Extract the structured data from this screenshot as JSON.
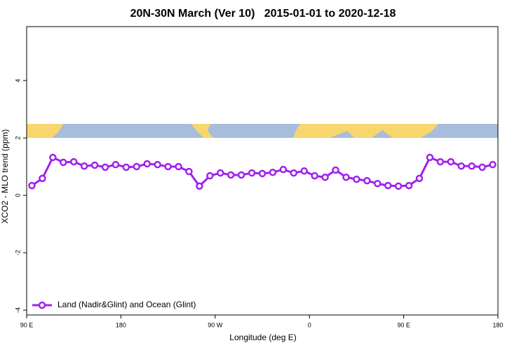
{
  "chart_data": {
    "type": "line",
    "title": "20N-30N March (Ver 10)   2015-01-01 to 2020-12-18",
    "x_label": "Longitude (deg E)",
    "y_label": "XCO2 - MLO trend (ppm)",
    "xlim": [
      90,
      540
    ],
    "xticks": [
      {
        "value": 90,
        "label": "90 E"
      },
      {
        "value": 180,
        "label": "180"
      },
      {
        "value": 270,
        "label": "90 W"
      },
      {
        "value": 360,
        "label": "0"
      },
      {
        "value": 450,
        "label": "90 E"
      },
      {
        "value": 540,
        "label": "180"
      }
    ],
    "ylim": [
      -4.17,
      5.88
    ],
    "yticks": [
      -4,
      -2,
      0,
      2,
      4
    ],
    "legend": "bottom-left",
    "x": [
      95,
      105,
      115,
      125,
      135,
      145,
      155,
      165,
      175,
      185,
      195,
      205,
      215,
      225,
      235,
      245,
      255,
      265,
      275,
      285,
      295,
      305,
      315,
      325,
      335,
      345,
      355,
      365,
      375,
      385,
      395,
      405,
      415,
      425,
      435,
      445,
      455,
      465,
      475,
      485,
      495,
      505,
      515,
      525,
      535
    ],
    "series": [
      {
        "name": "Land (Nadir&Glint) and Ocean (Glint)",
        "color": "#a020f0",
        "values": [
          0.34,
          0.59,
          1.32,
          1.15,
          1.17,
          1.02,
          1.05,
          0.98,
          1.07,
          0.98,
          1.0,
          1.1,
          1.07,
          1.0,
          1.0,
          0.83,
          0.32,
          0.68,
          0.78,
          0.71,
          0.71,
          0.78,
          0.76,
          0.8,
          0.9,
          0.78,
          0.85,
          0.68,
          0.63,
          0.88,
          0.63,
          0.56,
          0.51,
          0.41,
          0.34,
          0.32,
          0.34,
          0.59,
          1.32,
          1.17,
          1.17,
          1.02,
          1.02,
          0.98,
          1.07
        ]
      }
    ]
  }
}
